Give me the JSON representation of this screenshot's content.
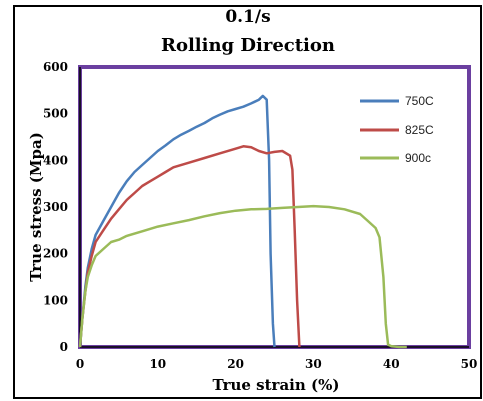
{
  "chart_data": {
    "type": "line",
    "title": "0.1/s",
    "subtitle": "Rolling Direction",
    "xlabel": "True strain (%)",
    "ylabel": "True stress (Mpa)",
    "xlim": [
      0,
      50
    ],
    "ylim": [
      0,
      600
    ],
    "x_ticks": [
      0,
      10,
      20,
      30,
      40,
      50
    ],
    "y_ticks": [
      0,
      100,
      200,
      300,
      400,
      500,
      600
    ],
    "x_tick_labels": [
      "0",
      "10",
      "20",
      "30",
      "40",
      "50"
    ],
    "y_tick_labels": [
      "0",
      "100",
      "200",
      "300",
      "400",
      "500",
      "600"
    ],
    "grid": false,
    "legend_position": "top-right",
    "plot_border_color": "#6b3fa0",
    "series": [
      {
        "name": "750C",
        "color": "#4a7ebb",
        "x": [
          0,
          0.3,
          0.7,
          1,
          1.5,
          2,
          3,
          4,
          5,
          6,
          7,
          8,
          9,
          10,
          11,
          12,
          13,
          14,
          15,
          16,
          17,
          18,
          19,
          20,
          21,
          22,
          23,
          23.5,
          24,
          24.3,
          24.5,
          24.8,
          25
        ],
        "y": [
          0,
          60,
          130,
          170,
          210,
          240,
          270,
          300,
          330,
          355,
          375,
          390,
          405,
          420,
          432,
          445,
          455,
          463,
          472,
          480,
          490,
          498,
          505,
          510,
          515,
          522,
          530,
          538,
          530,
          400,
          200,
          50,
          0
        ]
      },
      {
        "name": "825C",
        "color": "#be4b48",
        "x": [
          0,
          0.3,
          0.7,
          1,
          1.5,
          2,
          3,
          4,
          5,
          6,
          7,
          8,
          9,
          10,
          11,
          12,
          14,
          16,
          18,
          20,
          21,
          22,
          23,
          24,
          25,
          26,
          27,
          27.3,
          27.6,
          27.9,
          28.2
        ],
        "y": [
          0,
          60,
          120,
          160,
          195,
          225,
          250,
          275,
          295,
          315,
          330,
          345,
          355,
          365,
          375,
          385,
          395,
          405,
          415,
          425,
          430,
          428,
          420,
          415,
          418,
          420,
          410,
          380,
          250,
          100,
          0
        ]
      },
      {
        "name": "900c",
        "color": "#9bbb59",
        "x": [
          0,
          0.3,
          0.7,
          1,
          1.5,
          2,
          3,
          4,
          5,
          6,
          8,
          10,
          12,
          14,
          16,
          18,
          20,
          22,
          24,
          26,
          28,
          30,
          32,
          34,
          36,
          37,
          38,
          38.5,
          39,
          39.3,
          39.6,
          40,
          41,
          42
        ],
        "y": [
          0,
          60,
          120,
          150,
          175,
          195,
          210,
          225,
          230,
          238,
          248,
          258,
          265,
          272,
          280,
          287,
          292,
          295,
          296,
          298,
          300,
          302,
          300,
          295,
          285,
          270,
          255,
          235,
          150,
          50,
          5,
          2,
          0,
          0
        ]
      }
    ]
  }
}
